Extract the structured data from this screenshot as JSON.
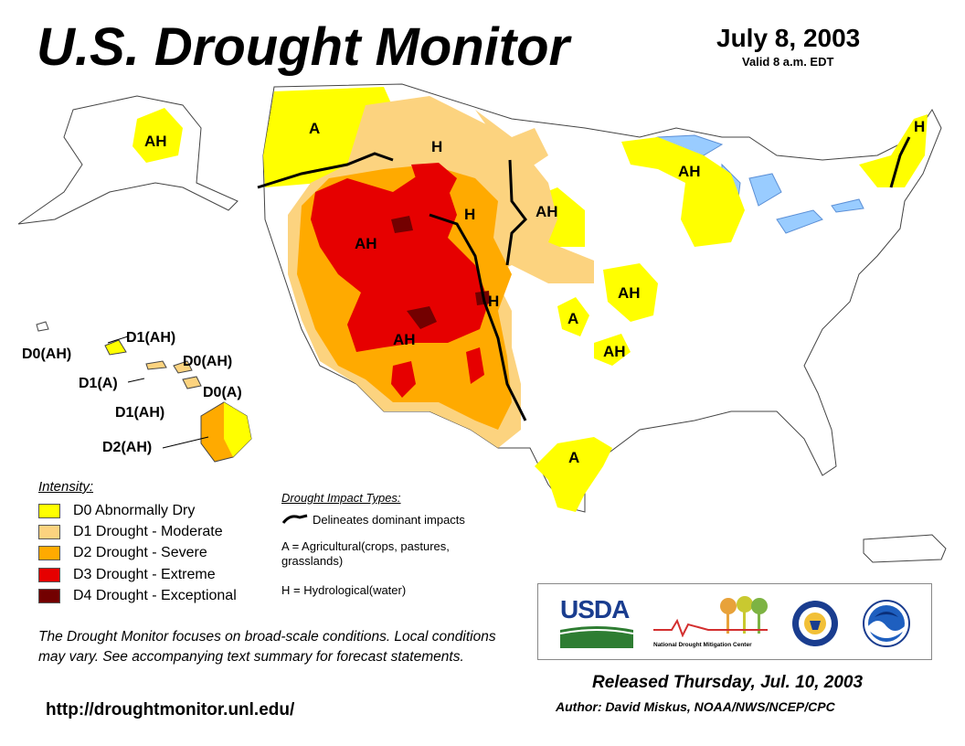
{
  "header": {
    "title": "U.S. Drought Monitor",
    "date": "July 8, 2003",
    "valid": "Valid 8 a.m. EDT"
  },
  "map": {
    "labels": {
      "wa_a": "A",
      "mt_h": "H",
      "wy_h": "H",
      "nd_ah": "AH",
      "mi_ah": "AH",
      "me_h": "H",
      "ut_ah": "AH",
      "co_h": "H",
      "ia_ah": "AH",
      "ks_a": "A",
      "nm_ah": "AH",
      "ok_ah": "AH",
      "tx_a": "A",
      "ak_ah": "AH"
    },
    "hawaii_labels": {
      "d1ah": "D1(AH)",
      "d0ah_w": "D0(AH)",
      "d0ah_e": "D0(AH)",
      "d1a": "D1(A)",
      "d0a": "D0(A)",
      "d1ah_s": "D1(AH)",
      "d2ah": "D2(AH)"
    },
    "colors": {
      "d0": "#ffff00",
      "d1": "#fcd37f",
      "d2": "#ffaa00",
      "d3": "#e60000",
      "d4": "#730000",
      "water": "#99ccff",
      "state_line": "#9a9a9a",
      "river": "#5b8fd6"
    }
  },
  "legend": {
    "title": "Intensity:",
    "items": [
      {
        "label": "D0 Abnormally Dry",
        "color": "#ffff00"
      },
      {
        "label": "D1 Drought - Moderate",
        "color": "#fcd37f"
      },
      {
        "label": "D2 Drought - Severe",
        "color": "#ffaa00"
      },
      {
        "label": "D3 Drought - Extreme",
        "color": "#e60000"
      },
      {
        "label": "D4 Drought - Exceptional",
        "color": "#730000"
      }
    ]
  },
  "impacts": {
    "title": "Drought Impact Types:",
    "line_label": "Delineates dominant impacts",
    "agricultural": "A = Agricultural(crops, pastures, grasslands)",
    "hydrological": "H = Hydrological(water)"
  },
  "note": "The Drought Monitor focuses on broad-scale conditions. Local conditions may vary. See accompanying text summary for forecast statements.",
  "url": "http://droughtmonitor.unl.edu/",
  "logos": {
    "usda": "USDA",
    "ndmc": "National Drought Mitigation Center"
  },
  "footer": {
    "released": "Released Thursday, Jul. 10, 2003",
    "author": "Author: David Miskus, NOAA/NWS/NCEP/CPC"
  }
}
